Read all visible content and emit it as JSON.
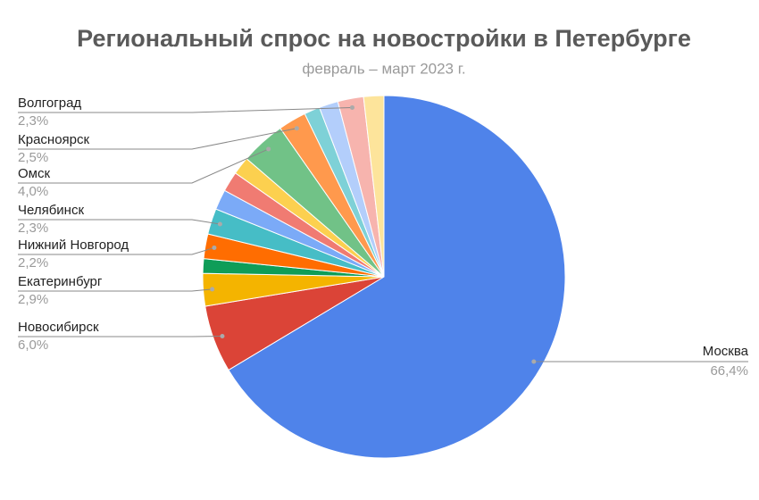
{
  "chart_data": {
    "type": "pie",
    "title": "Региональный спрос на новостройки в Петербурге",
    "subtitle": "февраль – март 2023 г.",
    "categories": [
      "Москва",
      "Новосибирск",
      "Екатеринбург",
      null,
      "Нижний Новгород",
      "Челябинск",
      null,
      null,
      null,
      "Омск",
      "Красноярск",
      null,
      null,
      "Волгоград",
      null
    ],
    "values": [
      66.4,
      6.0,
      2.9,
      1.3,
      2.2,
      2.3,
      1.8,
      1.8,
      1.6,
      4.0,
      2.5,
      1.4,
      1.7,
      2.3,
      1.8
    ],
    "value_labels": [
      "66,4%",
      "6,0%",
      "2,9%",
      null,
      "2,2%",
      "2,3%",
      null,
      null,
      null,
      "4,0%",
      "2,5%",
      null,
      null,
      "2,3%",
      null
    ],
    "colors": [
      "#4f83ea",
      "#db4437",
      "#f4b400",
      "#0f9d58",
      "#ff6d01",
      "#46bdc6",
      "#7baaf7",
      "#f07b72",
      "#fcd04f",
      "#71c287",
      "#ff994d",
      "#7ed1d7",
      "#b3cefb",
      "#f7b4ae",
      "#fde49b"
    ]
  }
}
